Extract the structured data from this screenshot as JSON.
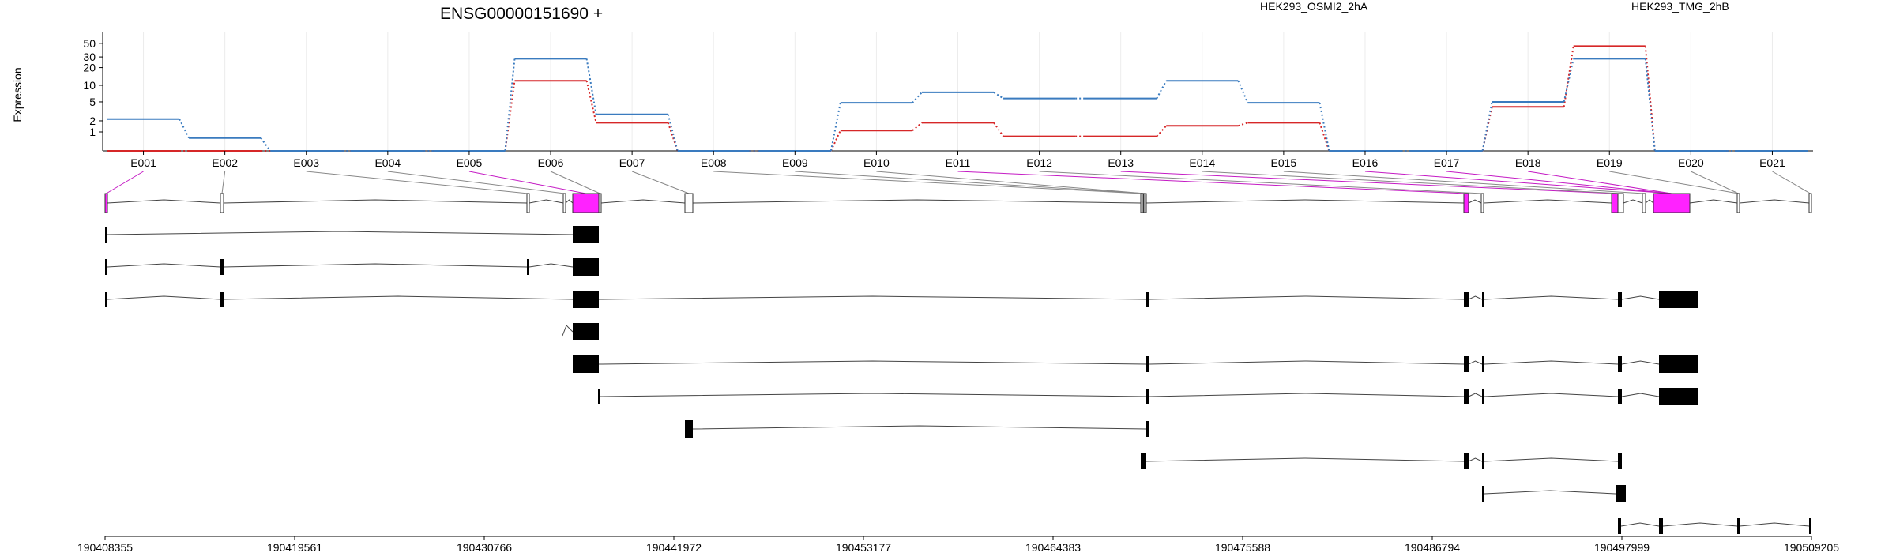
{
  "chart_data": {
    "type": "line",
    "title": "ENSG00000151690 +",
    "ylabel": "Expression",
    "y_scale": "log",
    "y_ticks": [
      1,
      2,
      5,
      10,
      20,
      30,
      50
    ],
    "grid": true,
    "legend_placement": "top",
    "categories": [
      "E001",
      "E002",
      "E003",
      "E004",
      "E005",
      "E006",
      "E007",
      "E008",
      "E009",
      "E010",
      "E011",
      "E012",
      "E013",
      "E014",
      "E015",
      "E016",
      "E017",
      "E018",
      "E019",
      "E020",
      "E021"
    ],
    "series": [
      {
        "name": "HEK293_OSMI2_2hA",
        "color": "#d62728",
        "values": [
          0,
          0,
          0,
          0,
          0,
          12,
          1.8,
          0,
          0,
          1.1,
          1.8,
          0.7,
          0.7,
          1.5,
          1.8,
          0,
          0,
          4,
          45,
          0,
          0
        ]
      },
      {
        "name": "HEK293_TMG_2hB",
        "color": "#3a7bbf",
        "values": [
          2.2,
          0.6,
          0,
          0,
          0,
          28,
          2.8,
          0,
          0,
          4.8,
          7.5,
          5.8,
          5.8,
          12,
          4.8,
          0,
          0,
          5,
          28,
          0,
          0
        ]
      }
    ],
    "coordinate_ticks": [
      "190408355",
      "190419561",
      "190430766",
      "190441972",
      "190453177",
      "190464383",
      "190475588",
      "190486794",
      "190497999",
      "190509205"
    ]
  }
}
